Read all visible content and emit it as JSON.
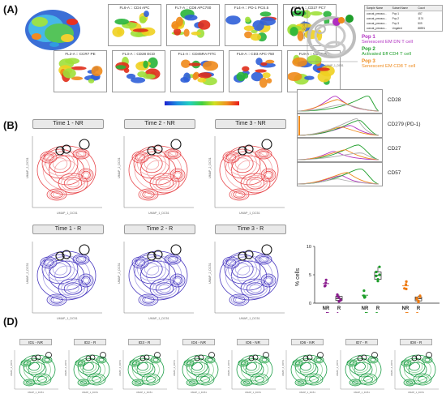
{
  "panels": {
    "A": {
      "label": "(A)",
      "markers_row1": [
        "FL6-A :: CD4 APC",
        "FL7-A :: CD8 APC700",
        "FL4-A :: PD-1 PCS.5",
        "FL5-A :: CD27 PC7"
      ],
      "markers_row2": [
        "FL2-A :: CCR7 PE",
        "FL3-A :: CD28 ECD",
        "FL1-A :: CD45RA FITC",
        "FL8-A :: CD3 APC-750",
        "FL9-A :: CD57 PB"
      ]
    },
    "B": {
      "label": "(B)",
      "row_nr": [
        "Time 1 - NR",
        "Time 2 - NR",
        "Time 3 - NR"
      ],
      "row_r": [
        "Time 1 - R",
        "Time 2 - R",
        "Time 3 - R"
      ],
      "axis_x": "UMAP_1_DC51",
      "axis_y": "UMAP_2_DC51"
    },
    "C": {
      "label": "(C)",
      "table_headers": [
        "Sample Name",
        "Subset Name",
        "Count"
      ],
      "table_rows": [
        [
          "concat_prevacc...",
          "Pop 1",
          "457"
        ],
        [
          "concat_prevacc...",
          "Pop 2",
          "1174"
        ],
        [
          "concat_prevacc...",
          "Pop 3",
          "509"
        ],
        [
          "concat_prevacc...",
          "Ungated",
          "88591"
        ]
      ],
      "pops": [
        {
          "name": "Pop 1",
          "desc": "Senescent EM DN T cell",
          "color": "#b02fc0"
        },
        {
          "name": "Pop 2",
          "desc": "Activated Eff CD4 T cell",
          "color": "#1e9e2a"
        },
        {
          "name": "Pop 3",
          "desc": "Senescent EM CD8 T cell",
          "color": "#ee8a1c"
        }
      ],
      "histograms": [
        "CD28",
        "CD279 (PD-1)",
        "CD27",
        "CD57"
      ],
      "axis_x": "UMAP_1_DC51",
      "axis_y": "UMAP_2_DC51"
    },
    "D": {
      "label": "(D)",
      "ids": [
        "ID1 - NR",
        "ID2 - R",
        "ID3 - R",
        "ID4 - NR",
        "ID5 - NR",
        "ID6 - NR",
        "ID7 - R",
        "ID8 - R"
      ],
      "axis_x": "UMAP_1_DC51",
      "axis_y": "UMAP_2_DC51"
    }
  },
  "chart_data": {
    "type": "scatter",
    "ylabel": "% cells",
    "ylim": [
      0,
      10
    ],
    "yticks": [
      "0",
      "5",
      "10"
    ],
    "x_labels": [
      "NR",
      "R",
      "NR",
      "R",
      "NR",
      "R"
    ],
    "groups": [
      {
        "name": "Pop1",
        "color": "#8a1c8e",
        "nr": [
          3.6,
          3.0,
          4.1,
          3.1
        ],
        "r": [
          1.5,
          0.3,
          0.5,
          1.2,
          1.0,
          0.6
        ]
      },
      {
        "name": "Pop2",
        "color": "#1e9e2a",
        "nr": [
          1.3,
          1.0,
          2.2,
          1.1
        ],
        "r": [
          4.8,
          4.2,
          6.4,
          5.5,
          3.9,
          5.0
        ]
      },
      {
        "name": "Pop3",
        "color": "#ee7a10",
        "nr": [
          3.3,
          2.5,
          3.8,
          2.6
        ],
        "r": [
          0.7,
          0.4,
          1.1,
          0.9,
          0.2,
          1.3
        ]
      }
    ]
  }
}
